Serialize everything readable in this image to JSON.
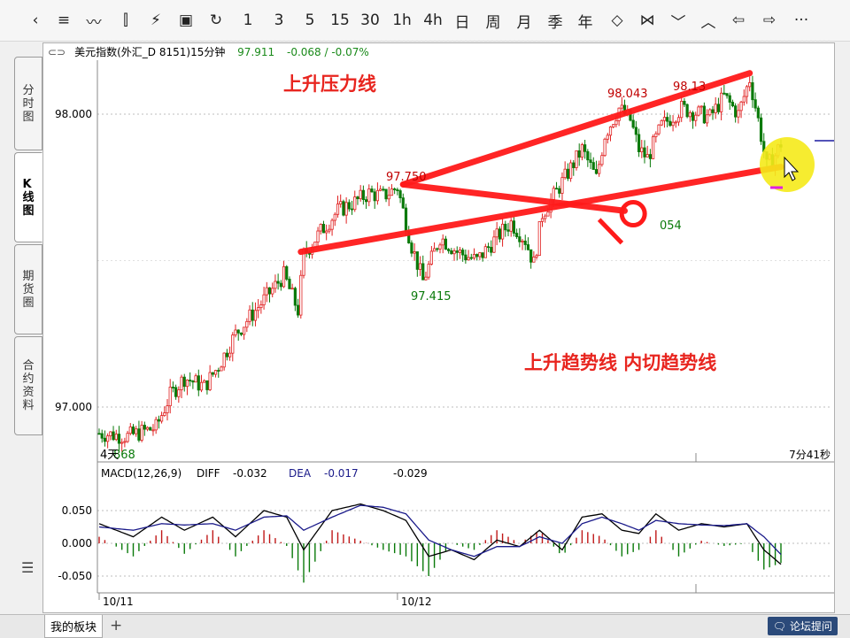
{
  "toolbar": {
    "items": [
      {
        "label": "‹",
        "icon": "back-icon"
      },
      {
        "label": "≡",
        "icon": "list-icon"
      },
      {
        "label": "〰",
        "icon": "line-chart-icon"
      },
      {
        "label": "⫿",
        "icon": "candle-icon"
      },
      {
        "label": "⚡",
        "icon": "draw-tool-icon"
      },
      {
        "label": "▣",
        "icon": "save-icon"
      },
      {
        "label": "↻",
        "icon": "refresh-icon"
      },
      {
        "label": "1"
      },
      {
        "label": "3"
      },
      {
        "label": "5"
      },
      {
        "label": "15"
      },
      {
        "label": "30"
      },
      {
        "label": "1h"
      },
      {
        "label": "4h"
      },
      {
        "label": "日"
      },
      {
        "label": "周"
      },
      {
        "label": "月"
      },
      {
        "label": "季"
      },
      {
        "label": "年"
      },
      {
        "label": "◇",
        "icon": "expand-icon"
      },
      {
        "label": "⋈",
        "icon": "compress-icon"
      },
      {
        "label": "﹀",
        "icon": "scroll-down-icon"
      },
      {
        "label": "︿",
        "icon": "scroll-up-icon"
      },
      {
        "label": "⇦",
        "icon": "prev-icon"
      },
      {
        "label": "⇨",
        "icon": "next-icon"
      },
      {
        "label": "···",
        "icon": "more-icon"
      }
    ]
  },
  "sidetabs": [
    "分\n时\n图",
    "K\n线\n图",
    "期\n货\n圈",
    "合\n约\n资\n料"
  ],
  "sidetab_menu_icon": "menu-icon",
  "header": {
    "instrument": "美元指数(外汇_D 8151)15分钟",
    "price": "97.911",
    "change": "-0.068 / -0.07%",
    "colors": {
      "price": "#1a8a1a",
      "change": "#1a8a1a"
    }
  },
  "annotations": {
    "resistance_label": "上升压力线",
    "trend_label": "上升趋势线 内切趋势线",
    "timer": "7分41秒",
    "bottom_left_label": "4天",
    "peaks": {
      "p1": "97.750",
      "p2": "98.043",
      "p3": "98.13"
    },
    "troughs": {
      "t1": "97.415",
      "t2": "054",
      "t3": "868"
    },
    "color": "#e8251f"
  },
  "macd_header": {
    "name": "MACD(12,26,9)",
    "diff_label": "DIFF",
    "diff": "-0.032",
    "dea_label": "DEA",
    "dea": "-0.017",
    "macd": "-0.029"
  },
  "bottom": {
    "my_sector": "我的板块",
    "add": "+",
    "forum": "论坛提问",
    "forum_icon": "forum-icon"
  },
  "chart_data": [
    {
      "type": "candlestick",
      "title": "美元指数(外汇_D 8151)15分钟",
      "yticks": [
        "98.000",
        "97.000"
      ],
      "ytick_values": [
        98.0,
        97.0
      ],
      "ylim": [
        96.8,
        98.3
      ],
      "xticks": [
        "10/11",
        "10/12"
      ],
      "grid": true,
      "anchors": [
        [
          0,
          96.91
        ],
        [
          10,
          96.9
        ],
        [
          20,
          96.93
        ],
        [
          25,
          97.04
        ],
        [
          30,
          97.1
        ],
        [
          37,
          97.07
        ],
        [
          42,
          97.14
        ],
        [
          48,
          97.25
        ],
        [
          55,
          97.33
        ],
        [
          60,
          97.39
        ],
        [
          65,
          97.45
        ],
        [
          70,
          97.33
        ],
        [
          72,
          97.52
        ],
        [
          78,
          97.6
        ],
        [
          84,
          97.67
        ],
        [
          90,
          97.7
        ],
        [
          95,
          97.73
        ],
        [
          100,
          97.72
        ],
        [
          105,
          97.75
        ],
        [
          110,
          97.55
        ],
        [
          114,
          97.43
        ],
        [
          120,
          97.58
        ],
        [
          126,
          97.53
        ],
        [
          133,
          97.5
        ],
        [
          140,
          97.58
        ],
        [
          145,
          97.63
        ],
        [
          150,
          97.57
        ],
        [
          153,
          97.49
        ],
        [
          156,
          97.66
        ],
        [
          160,
          97.72
        ],
        [
          165,
          97.8
        ],
        [
          170,
          97.88
        ],
        [
          175,
          97.78
        ],
        [
          178,
          97.93
        ],
        [
          183,
          98.02
        ],
        [
          187,
          97.98
        ],
        [
          190,
          97.88
        ],
        [
          193,
          97.85
        ],
        [
          198,
          97.96
        ],
        [
          205,
          98.02
        ],
        [
          215,
          97.99
        ],
        [
          220,
          98.06
        ],
        [
          225,
          98.0
        ],
        [
          229,
          98.12
        ],
        [
          232,
          97.98
        ],
        [
          235,
          97.82
        ],
        [
          238,
          97.86
        ],
        [
          240,
          97.9
        ]
      ],
      "trendlines": [
        {
          "name": "上升压力线",
          "from": [
            107,
            97.76
          ],
          "to": [
            229,
            98.14
          ]
        },
        {
          "name": "上升趋势线",
          "from": [
            71,
            97.53
          ],
          "to": [
            240,
            97.82
          ]
        },
        {
          "name": "内切趋势线",
          "from": [
            107,
            97.76
          ],
          "to": [
            185,
            97.67
          ]
        }
      ]
    },
    {
      "type": "line",
      "title": "MACD(12,26,9)",
      "yticks": [
        "0.050",
        "0.000",
        "-0.050"
      ],
      "ytick_values": [
        0.05,
        0.0,
        -0.05
      ],
      "ylim": [
        -0.07,
        0.08
      ],
      "series": [
        {
          "name": "DIFF",
          "color": "#000000",
          "anchors": [
            [
              0,
              0.03
            ],
            [
              12,
              0.01
            ],
            [
              22,
              0.04
            ],
            [
              30,
              0.02
            ],
            [
              40,
              0.04
            ],
            [
              48,
              0.01
            ],
            [
              58,
              0.05
            ],
            [
              66,
              0.04
            ],
            [
              72,
              -0.01
            ],
            [
              82,
              0.05
            ],
            [
              92,
              0.06
            ],
            [
              100,
              0.05
            ],
            [
              108,
              0.035
            ],
            [
              116,
              -0.02
            ],
            [
              124,
              -0.01
            ],
            [
              132,
              -0.025
            ],
            [
              140,
              0.005
            ],
            [
              148,
              -0.005
            ],
            [
              155,
              0.02
            ],
            [
              163,
              -0.01
            ],
            [
              170,
              0.04
            ],
            [
              177,
              0.045
            ],
            [
              184,
              0.02
            ],
            [
              190,
              0.015
            ],
            [
              196,
              0.045
            ],
            [
              204,
              0.02
            ],
            [
              212,
              0.03
            ],
            [
              220,
              0.025
            ],
            [
              228,
              0.03
            ],
            [
              234,
              -0.01
            ],
            [
              240,
              -0.032
            ]
          ]
        },
        {
          "name": "DEA",
          "color": "#1a1a8a",
          "anchors": [
            [
              0,
              0.025
            ],
            [
              12,
              0.02
            ],
            [
              22,
              0.03
            ],
            [
              30,
              0.028
            ],
            [
              40,
              0.03
            ],
            [
              48,
              0.02
            ],
            [
              58,
              0.04
            ],
            [
              66,
              0.042
            ],
            [
              72,
              0.02
            ],
            [
              82,
              0.04
            ],
            [
              92,
              0.058
            ],
            [
              100,
              0.055
            ],
            [
              108,
              0.045
            ],
            [
              116,
              0.005
            ],
            [
              124,
              -0.01
            ],
            [
              132,
              -0.02
            ],
            [
              140,
              -0.005
            ],
            [
              148,
              -0.005
            ],
            [
              155,
              0.01
            ],
            [
              163,
              0.0
            ],
            [
              170,
              0.03
            ],
            [
              177,
              0.04
            ],
            [
              184,
              0.03
            ],
            [
              190,
              0.02
            ],
            [
              196,
              0.035
            ],
            [
              204,
              0.03
            ],
            [
              212,
              0.028
            ],
            [
              220,
              0.027
            ],
            [
              228,
              0.03
            ],
            [
              234,
              0.01
            ],
            [
              240,
              -0.017
            ]
          ]
        }
      ]
    }
  ]
}
